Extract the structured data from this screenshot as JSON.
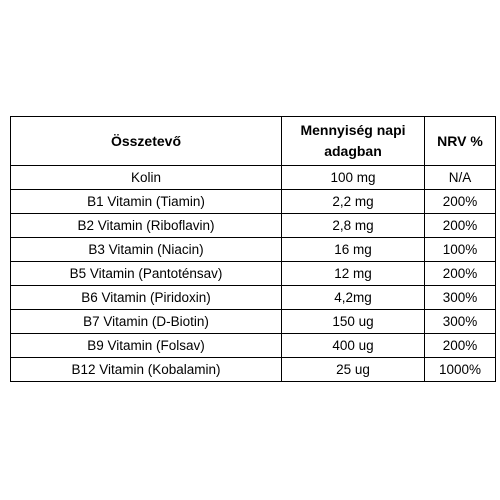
{
  "table": {
    "headers": [
      "Összetevő",
      "Mennyiség napi adagban",
      "NRV %"
    ],
    "rows": [
      [
        "Kolin",
        "100 mg",
        "N/A"
      ],
      [
        "B1 Vitamin (Tiamin)",
        "2,2 mg",
        "200%"
      ],
      [
        "B2 Vitamin (Riboflavin)",
        "2,8 mg",
        "200%"
      ],
      [
        "B3 Vitamin (Niacin)",
        "16 mg",
        "100%"
      ],
      [
        "B5 Vitamin (Pantoténsav)",
        "12 mg",
        "200%"
      ],
      [
        "B6 Vitamin (Piridoxin)",
        "4,2mg",
        "300%"
      ],
      [
        "B7 Vitamin (D-Biotin)",
        "150 ug",
        "300%"
      ],
      [
        "B9 Vitamin (Folsav)",
        "400 ug",
        "200%"
      ],
      [
        "B12 Vitamin (Kobalamin)",
        "25 ug",
        "1000%"
      ]
    ]
  }
}
